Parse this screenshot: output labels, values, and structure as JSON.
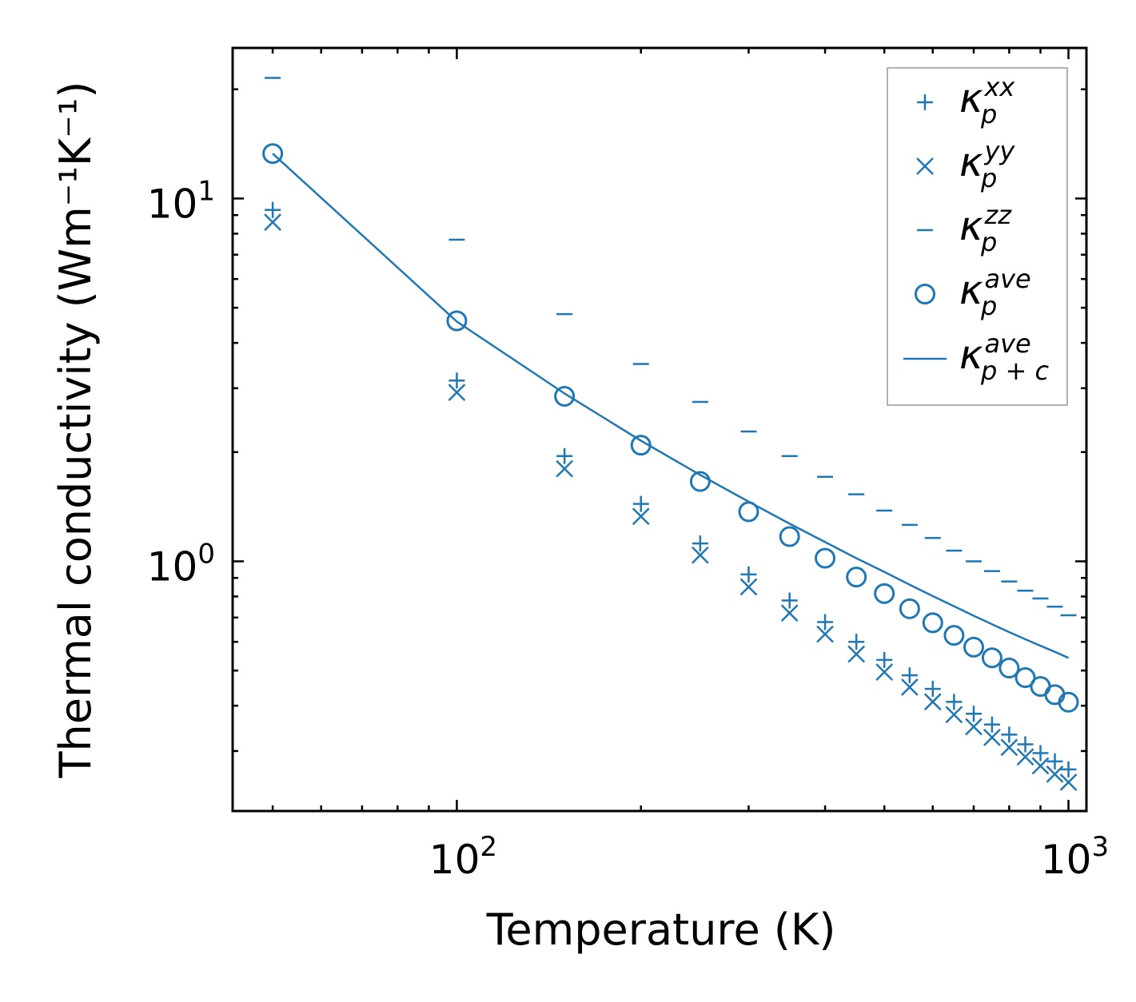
{
  "chart_data": {
    "type": "scatter",
    "title": "",
    "xlabel": "Temperature (K)",
    "ylabel": "Thermal conductivity (Wm⁻¹K⁻¹)",
    "xscale": "log",
    "yscale": "log",
    "xlim": [
      43,
      1070
    ],
    "ylim": [
      0.205,
      26
    ],
    "xticks": [
      {
        "base": "10",
        "exp": "2",
        "value": 100
      },
      {
        "base": "10",
        "exp": "3",
        "value": 1000
      }
    ],
    "yticks": [
      {
        "base": "10",
        "exp": "0",
        "value": 1
      },
      {
        "base": "10",
        "exp": "1",
        "value": 10
      }
    ],
    "color": "#1f77b4",
    "legend_position": "top-right",
    "x": [
      50,
      100,
      150,
      200,
      250,
      300,
      350,
      400,
      450,
      500,
      550,
      600,
      650,
      700,
      750,
      800,
      850,
      900,
      950,
      1000
    ],
    "series": [
      {
        "key": "kxx",
        "name": "κ",
        "sub": "p",
        "sup": "xx",
        "marker": "plus",
        "values": [
          9.3,
          3.15,
          1.95,
          1.44,
          1.12,
          0.92,
          0.78,
          0.68,
          0.6,
          0.535,
          0.485,
          0.445,
          0.41,
          0.38,
          0.355,
          0.333,
          0.313,
          0.296,
          0.281,
          0.267
        ]
      },
      {
        "key": "kyy",
        "name": "κ",
        "sub": "p",
        "sup": "yy",
        "marker": "x",
        "values": [
          8.6,
          2.92,
          1.8,
          1.33,
          1.04,
          0.85,
          0.72,
          0.63,
          0.555,
          0.495,
          0.45,
          0.41,
          0.378,
          0.35,
          0.327,
          0.307,
          0.289,
          0.273,
          0.259,
          0.246
        ]
      },
      {
        "key": "kzz",
        "name": "κ",
        "sub": "p",
        "sup": "zz",
        "marker": "hline",
        "values": [
          21.5,
          7.7,
          4.8,
          3.5,
          2.75,
          2.28,
          1.95,
          1.71,
          1.53,
          1.38,
          1.26,
          1.16,
          1.07,
          1.0,
          0.94,
          0.88,
          0.83,
          0.79,
          0.75,
          0.71
        ]
      },
      {
        "key": "kave",
        "name": "κ",
        "sub": "p",
        "sup": "ave",
        "marker": "circle",
        "values": [
          13.3,
          4.6,
          2.85,
          2.09,
          1.66,
          1.37,
          1.17,
          1.02,
          0.905,
          0.815,
          0.74,
          0.677,
          0.625,
          0.58,
          0.542,
          0.508,
          0.478,
          0.452,
          0.429,
          0.409
        ]
      },
      {
        "key": "kpc",
        "name": "κ",
        "sub": "p + c",
        "sup": "ave",
        "marker": "line",
        "values": [
          13.3,
          4.58,
          2.9,
          2.15,
          1.73,
          1.46,
          1.27,
          1.13,
          1.02,
          0.935,
          0.862,
          0.802,
          0.752,
          0.708,
          0.671,
          0.638,
          0.61,
          0.585,
          0.563,
          0.542
        ]
      }
    ]
  }
}
